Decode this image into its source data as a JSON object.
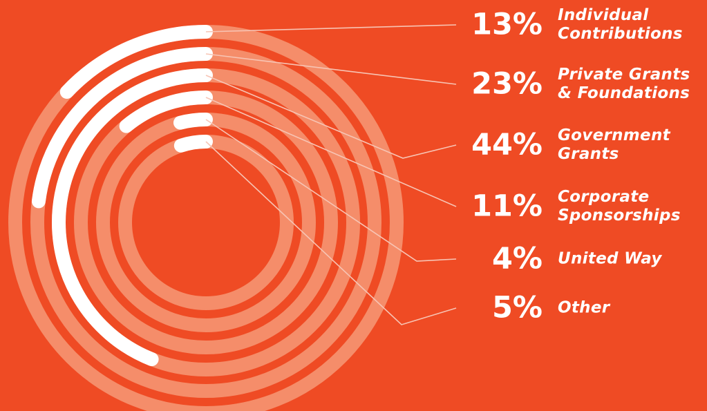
{
  "chart_data": {
    "type": "radial-bar",
    "title": "",
    "value_unit": "%",
    "max_value": 100,
    "series": [
      {
        "label_lines": [
          "Individual",
          "Contributions"
        ],
        "value": 13,
        "display": "13%"
      },
      {
        "label_lines": [
          "Private Grants",
          "& Foundations"
        ],
        "value": 23,
        "display": "23%"
      },
      {
        "label_lines": [
          "Government",
          "Grants"
        ],
        "value": 44,
        "display": "44%"
      },
      {
        "label_lines": [
          "Corporate",
          "Sponsorships"
        ],
        "value": 11,
        "display": "11%"
      },
      {
        "label_lines": [
          "United Way"
        ],
        "value": 4,
        "display": "4%"
      },
      {
        "label_lines": [
          "Other"
        ],
        "value": 5,
        "display": "5%"
      }
    ],
    "colors": {
      "background": "#ef4b24",
      "bar": "#ffffff",
      "track": "#f58d6a",
      "leader_line": "#f7c4b4"
    }
  }
}
